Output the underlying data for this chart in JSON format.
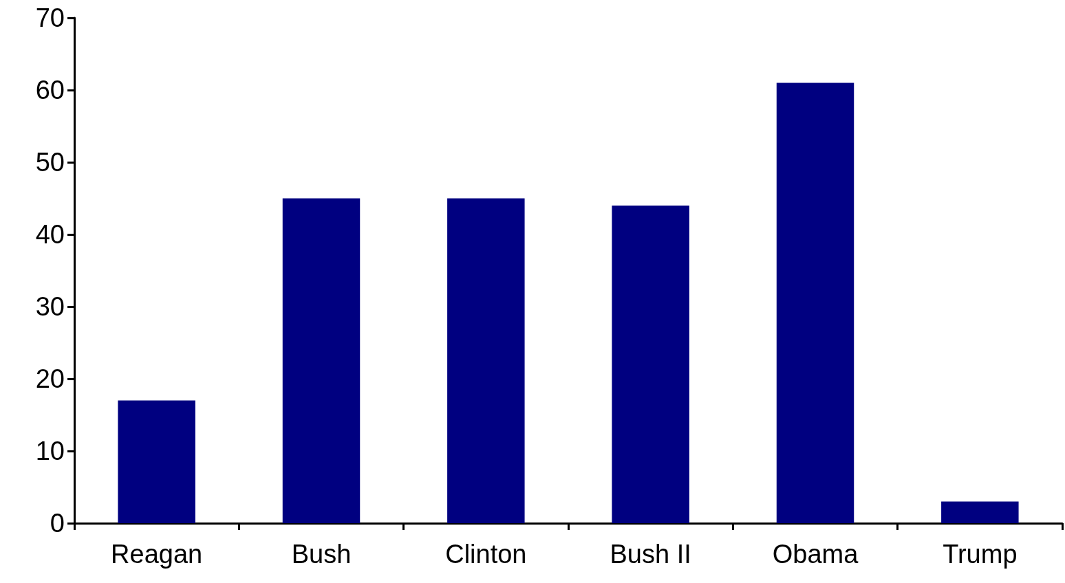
{
  "chart_data": {
    "type": "bar",
    "categories": [
      "Reagan",
      "Bush",
      "Clinton",
      "Bush II",
      "Obama",
      "Trump"
    ],
    "values": [
      17,
      45,
      45,
      44,
      61,
      3
    ],
    "color": "#000080",
    "ylim": [
      0,
      70
    ],
    "yticks": [
      0,
      10,
      20,
      30,
      40,
      50,
      60,
      70
    ],
    "grid": false
  }
}
